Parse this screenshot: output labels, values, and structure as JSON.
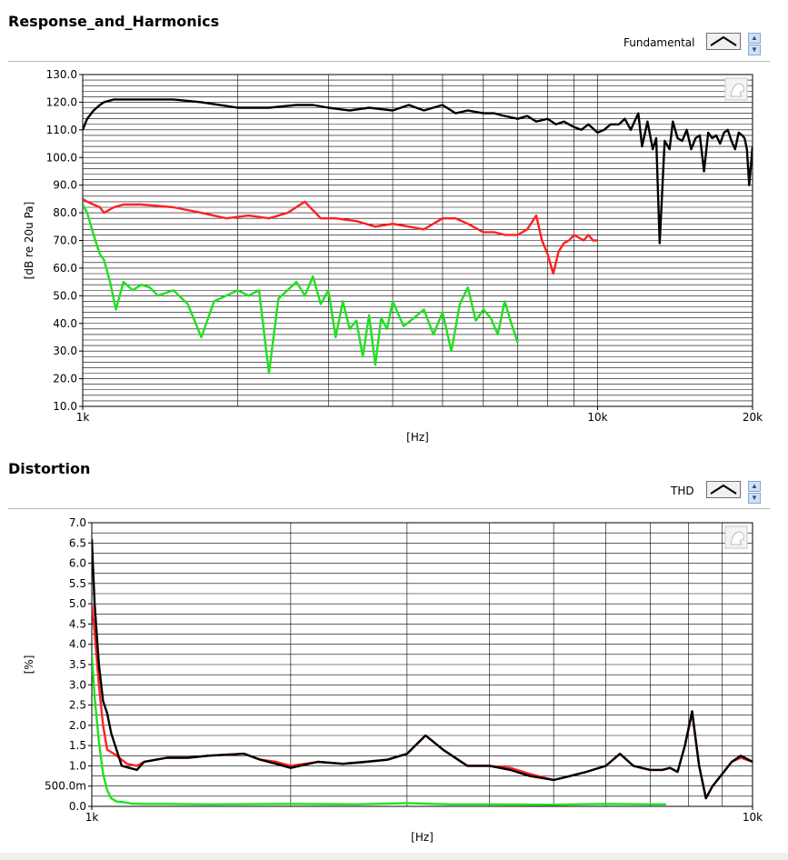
{
  "panels": [
    {
      "title": "Response_and_Harmonics",
      "plot_selector": "Fundamental"
    },
    {
      "title": "Distortion",
      "plot_selector": "THD"
    }
  ],
  "colors": {
    "fundamental": "#000000",
    "h2": "#ff2020",
    "h3": "#20e020",
    "grid": "#000000"
  },
  "chart_data": [
    {
      "type": "line",
      "title": "Response_and_Harmonics",
      "xlabel": "[Hz]",
      "ylabel": "[dB re 20u Pa]",
      "xscale": "log",
      "xlim": [
        1000,
        20000
      ],
      "ylim": [
        10,
        130
      ],
      "grid": true,
      "xticks": [
        1000,
        10000,
        20000
      ],
      "xtick_labels": [
        "1k",
        "10k",
        "20k"
      ],
      "yticks": [
        10,
        20,
        30,
        40,
        50,
        60,
        70,
        80,
        90,
        100,
        110,
        120,
        130
      ],
      "ytick_labels": [
        "10.0",
        "20.0",
        "30.0",
        "40.0",
        "50.0",
        "60.0",
        "70.0",
        "80.0",
        "90.0",
        "100.0",
        "110.0",
        "120.0",
        "130.0"
      ],
      "series": [
        {
          "color": "#000000",
          "x": [
            1000,
            1020,
            1050,
            1080,
            1100,
            1150,
            1200,
            1300,
            1500,
            1700,
            2000,
            2300,
            2600,
            2800,
            3000,
            3300,
            3600,
            4000,
            4300,
            4600,
            5000,
            5300,
            5600,
            6000,
            6300,
            6600,
            7000,
            7300,
            7600,
            8000,
            8300,
            8600,
            9000,
            9300,
            9600,
            10000,
            10300,
            10600,
            11000,
            11300,
            11600,
            12000,
            12200,
            12500,
            12800,
            13000,
            13200,
            13500,
            13800,
            14000,
            14300,
            14600,
            14900,
            15200,
            15500,
            15800,
            16100,
            16400,
            16700,
            17000,
            17300,
            17600,
            17900,
            18200,
            18500,
            18800,
            19100,
            19300,
            19500,
            19700,
            20000
          ],
          "y": [
            110,
            114,
            117,
            119,
            120,
            121,
            121,
            121,
            121,
            120,
            118,
            118,
            119,
            119,
            118,
            117,
            118,
            117,
            119,
            117,
            119,
            116,
            117,
            116,
            116,
            115,
            114,
            115,
            113,
            114,
            112,
            113,
            111,
            110,
            112,
            109,
            110,
            112,
            112,
            114,
            110,
            116,
            104,
            113,
            103,
            107,
            69,
            106,
            103,
            113,
            107,
            106,
            110,
            103,
            107,
            108,
            95,
            109,
            107,
            108,
            105,
            109,
            110,
            106,
            103,
            109,
            108,
            107,
            103,
            90,
            104
          ]
        },
        {
          "color": "#ff2020",
          "x": [
            1000,
            1020,
            1050,
            1080,
            1100,
            1150,
            1200,
            1300,
            1500,
            1700,
            1900,
            2100,
            2300,
            2500,
            2700,
            2900,
            3100,
            3400,
            3700,
            4000,
            4300,
            4600,
            5000,
            5300,
            5600,
            6000,
            6300,
            6600,
            7000,
            7300,
            7600,
            7800,
            8000,
            8200,
            8400,
            8600,
            8800,
            9000,
            9200,
            9400,
            9600,
            9800,
            10000
          ],
          "y": [
            85,
            84,
            83,
            82,
            80,
            82,
            83,
            83,
            82,
            80,
            78,
            79,
            78,
            80,
            84,
            78,
            78,
            77,
            75,
            76,
            75,
            74,
            78,
            78,
            76,
            73,
            73,
            72,
            72,
            74,
            79,
            70,
            65,
            58,
            66,
            69,
            70,
            72,
            71,
            70,
            72,
            70,
            70
          ]
        },
        {
          "color": "#20e020",
          "x": [
            1000,
            1020,
            1050,
            1080,
            1100,
            1130,
            1160,
            1200,
            1250,
            1300,
            1350,
            1400,
            1500,
            1600,
            1700,
            1800,
            1900,
            2000,
            2100,
            2200,
            2300,
            2400,
            2500,
            2600,
            2700,
            2800,
            2900,
            3000,
            3100,
            3200,
            3300,
            3400,
            3500,
            3600,
            3700,
            3800,
            3900,
            4000,
            4200,
            4400,
            4600,
            4800,
            5000,
            5200,
            5400,
            5600,
            5800,
            6000,
            6200,
            6400,
            6600,
            6800,
            7000
          ],
          "y": [
            83,
            80,
            72,
            65,
            63,
            55,
            45,
            55,
            52,
            54,
            53,
            50,
            52,
            47,
            35,
            48,
            50,
            52,
            50,
            52,
            22,
            49,
            52,
            55,
            50,
            57,
            47,
            52,
            35,
            48,
            38,
            41,
            28,
            43,
            25,
            42,
            38,
            48,
            39,
            42,
            45,
            36,
            44,
            30,
            47,
            53,
            41,
            45,
            42,
            36,
            48,
            40,
            33
          ]
        }
      ]
    },
    {
      "type": "line",
      "title": "Distortion",
      "xlabel": "[Hz]",
      "ylabel": "[%]",
      "xscale": "log",
      "xlim": [
        1000,
        10000
      ],
      "ylim": [
        0,
        7
      ],
      "grid": true,
      "xticks": [
        1000,
        10000
      ],
      "xtick_labels": [
        "1k",
        "10k"
      ],
      "yticks": [
        0,
        0.5,
        1,
        1.5,
        2,
        2.5,
        3,
        3.5,
        4,
        4.5,
        5,
        5.5,
        6,
        6.5,
        7
      ],
      "ytick_labels": [
        "0.0",
        "500.0m",
        "1.0",
        "1.5",
        "2.0",
        "2.5",
        "3.0",
        "3.5",
        "4.0",
        "4.5",
        "5.0",
        "5.5",
        "6.0",
        "6.5",
        "7.0"
      ],
      "series": [
        {
          "color": "#ff2020",
          "x": [
            1000,
            1010,
            1025,
            1040,
            1055,
            1080,
            1100,
            1130,
            1170,
            1200,
            1250,
            1300,
            1400,
            1500,
            1700,
            1800,
            1900,
            2000,
            2200,
            2400,
            2600,
            2800,
            3000,
            3200,
            3400,
            3700,
            4000,
            4300,
            4600,
            5000,
            5300,
            5600,
            6000,
            6300,
            6600,
            7000,
            7300,
            7500,
            7700,
            7900,
            8100,
            8300,
            8500,
            8700,
            9000,
            9300,
            9600,
            10000
          ],
          "y": [
            5,
            4.3,
            3,
            2,
            1.4,
            1.3,
            1.2,
            1.05,
            1.0,
            1.1,
            1.15,
            1.2,
            1.2,
            1.25,
            1.3,
            1.15,
            1.1,
            1.0,
            1.1,
            1.05,
            1.1,
            1.15,
            1.3,
            1.75,
            1.4,
            1.0,
            1.0,
            0.95,
            0.8,
            0.65,
            0.75,
            0.85,
            1.0,
            1.3,
            1.0,
            0.9,
            0.9,
            0.95,
            0.85,
            1.5,
            2.3,
            1.0,
            0.2,
            0.5,
            0.8,
            1.1,
            1.2,
            1.1
          ]
        },
        {
          "color": "#000000",
          "x": [
            1000,
            1010,
            1025,
            1040,
            1055,
            1070,
            1090,
            1110,
            1140,
            1170,
            1200,
            1250,
            1300,
            1400,
            1500,
            1700,
            1800,
            1900,
            2000,
            2200,
            2400,
            2600,
            2800,
            3000,
            3200,
            3400,
            3700,
            4000,
            4300,
            4600,
            5000,
            5300,
            5600,
            6000,
            6300,
            6600,
            7000,
            7300,
            7500,
            7700,
            7900,
            8100,
            8300,
            8500,
            8700,
            9000,
            9300,
            9600,
            10000
          ],
          "y": [
            6.6,
            5.0,
            3.5,
            2.6,
            2.3,
            1.8,
            1.4,
            1.0,
            0.95,
            0.9,
            1.1,
            1.15,
            1.2,
            1.2,
            1.25,
            1.3,
            1.15,
            1.05,
            0.95,
            1.1,
            1.05,
            1.1,
            1.15,
            1.3,
            1.75,
            1.4,
            1.0,
            1.0,
            0.9,
            0.75,
            0.65,
            0.75,
            0.85,
            1.0,
            1.3,
            1.0,
            0.9,
            0.9,
            0.95,
            0.85,
            1.5,
            2.35,
            1.0,
            0.2,
            0.5,
            0.8,
            1.1,
            1.25,
            1.1
          ]
        },
        {
          "color": "#20e020",
          "x": [
            1000,
            1010,
            1025,
            1040,
            1055,
            1070,
            1090,
            1120,
            1150,
            1200,
            1300,
            1500,
            2000,
            2500,
            3000,
            3500,
            4000,
            5000,
            6000,
            7000,
            7400
          ],
          "y": [
            3.75,
            2.7,
            1.6,
            0.8,
            0.4,
            0.2,
            0.12,
            0.1,
            0.07,
            0.06,
            0.06,
            0.05,
            0.06,
            0.05,
            0.08,
            0.05,
            0.05,
            0.04,
            0.06,
            0.05,
            0.05
          ]
        }
      ]
    }
  ]
}
